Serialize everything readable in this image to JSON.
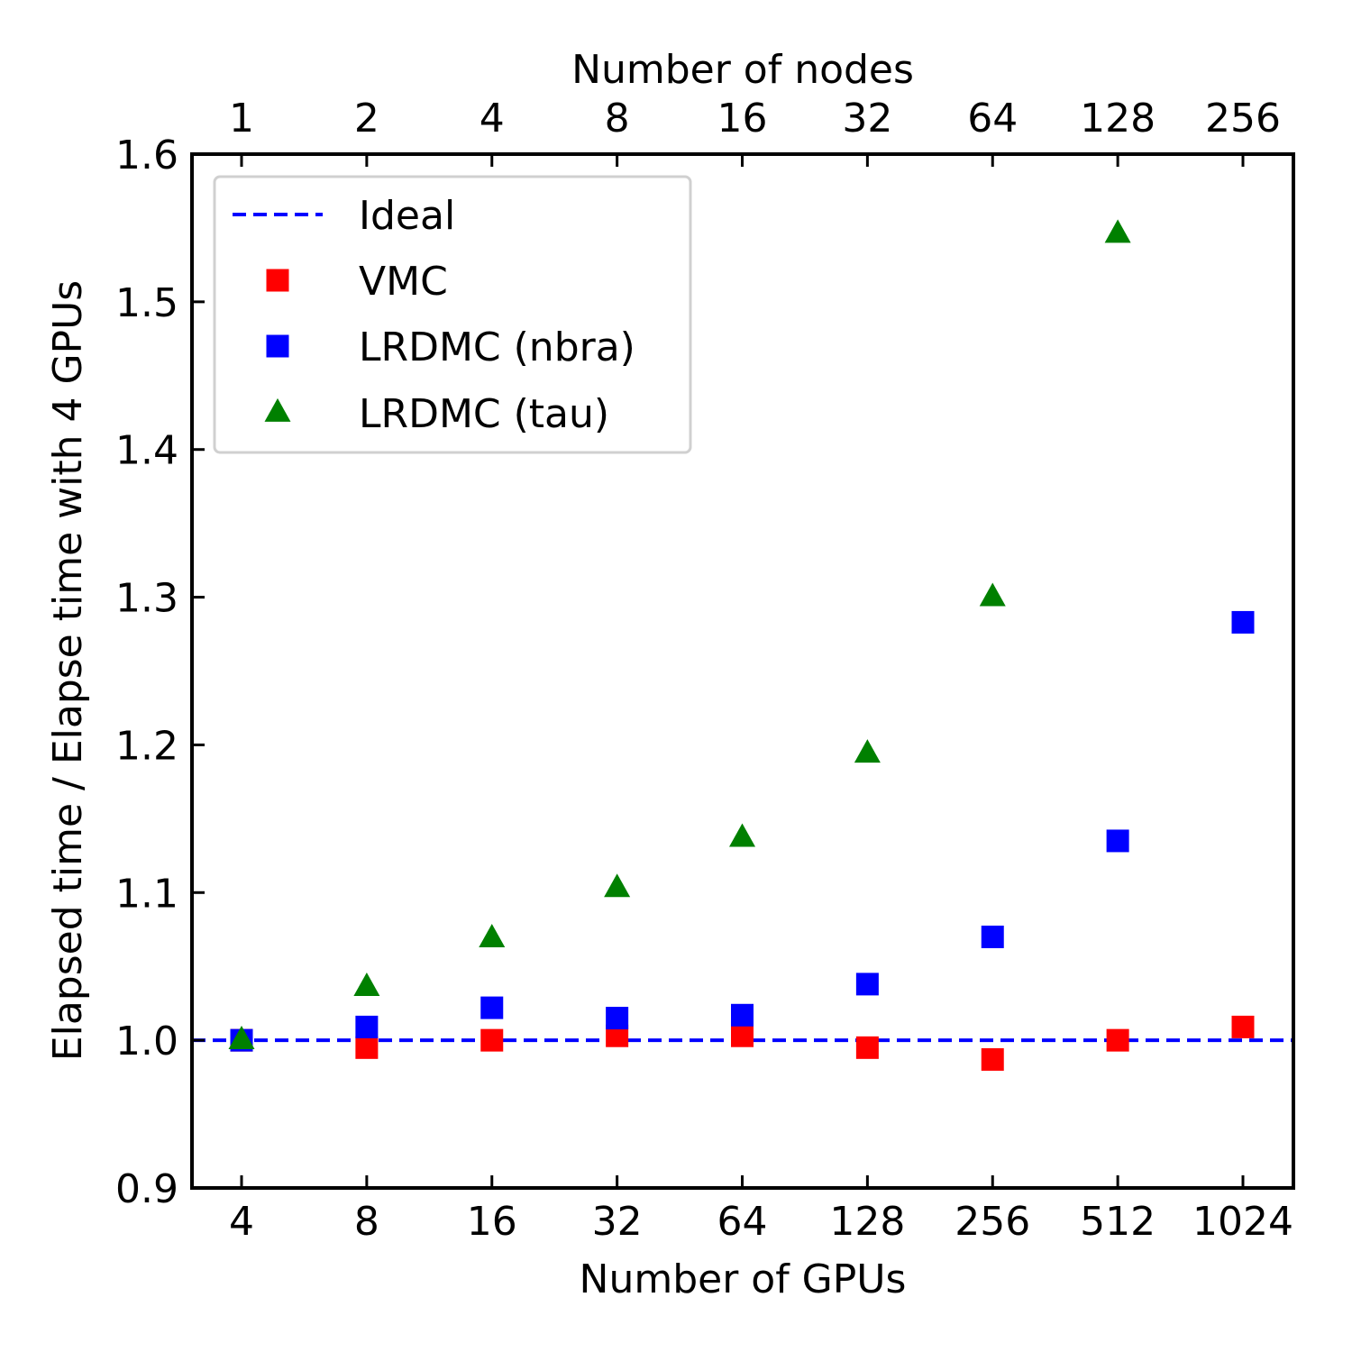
{
  "chart_data": {
    "type": "scatter",
    "xlabel": "Number of GPUs",
    "ylabel": "Elapsed time / Elapse time with 4 GPUs",
    "top_xlabel": "Number of nodes",
    "x_scale": "log2",
    "x": [
      4,
      8,
      16,
      32,
      64,
      128,
      256,
      512,
      1024
    ],
    "x_tick_labels": [
      "4",
      "8",
      "16",
      "32",
      "64",
      "128",
      "256",
      "512",
      "1024"
    ],
    "top_x_tick_labels": [
      "1",
      "2",
      "4",
      "8",
      "16",
      "32",
      "64",
      "128",
      "256"
    ],
    "ylim": [
      0.9,
      1.6
    ],
    "y_ticks": [
      0.9,
      1.0,
      1.1,
      1.2,
      1.3,
      1.4,
      1.5,
      1.6
    ],
    "y_tick_labels": [
      "0.9",
      "1.0",
      "1.1",
      "1.2",
      "1.3",
      "1.4",
      "1.5",
      "1.6"
    ],
    "grid": false,
    "legend_position": "top-left",
    "reference_line": {
      "name": "Ideal",
      "y": 1.0,
      "color": "#0000ff",
      "style": "dashed"
    },
    "series": [
      {
        "name": "VMC",
        "marker": "square",
        "color": "#ff0000",
        "values": [
          1.0,
          0.995,
          1.0,
          1.003,
          1.003,
          0.995,
          0.987,
          1.0,
          1.009
        ]
      },
      {
        "name": "LRDMC (nbra)",
        "marker": "square",
        "color": "#0000ff",
        "values": [
          1.0,
          1.009,
          1.022,
          1.015,
          1.017,
          1.038,
          1.07,
          1.135,
          1.283
        ]
      },
      {
        "name": "LRDMC (tau)",
        "marker": "triangle",
        "color": "#008000",
        "values": [
          1.0,
          1.036,
          1.069,
          1.103,
          1.137,
          1.194,
          1.3,
          1.546,
          null
        ]
      }
    ]
  }
}
